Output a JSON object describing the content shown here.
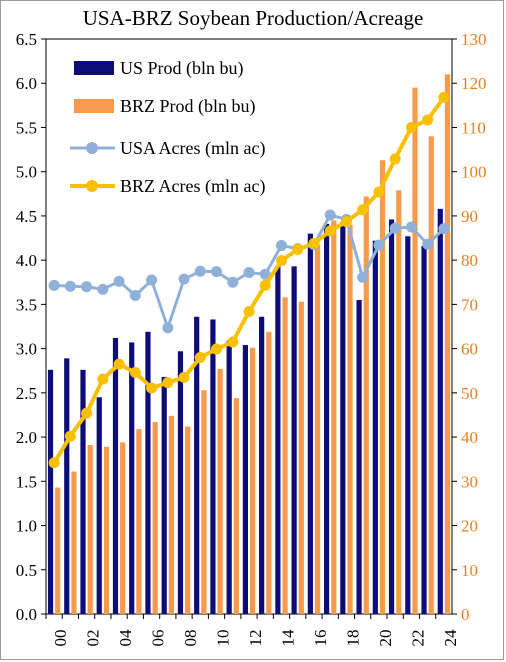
{
  "chart_data": {
    "type": "bar+line",
    "title": "USA-BRZ Soybean Production/Acreage",
    "x": [
      "00",
      "01",
      "02",
      "03",
      "04",
      "05",
      "06",
      "07",
      "08",
      "09",
      "10",
      "11",
      "12",
      "13",
      "14",
      "15",
      "16",
      "17",
      "18",
      "19",
      "20",
      "21",
      "22",
      "23",
      "24"
    ],
    "x_tick_labels": [
      "00",
      "02",
      "04",
      "06",
      "08",
      "10",
      "12",
      "14",
      "16",
      "18",
      "20",
      "22",
      "24"
    ],
    "y_left": {
      "min": 0,
      "max": 6.5,
      "ticks": [
        "0.0",
        "0.5",
        "1.0",
        "1.5",
        "2.0",
        "2.5",
        "3.0",
        "3.5",
        "4.0",
        "4.5",
        "5.0",
        "5.5",
        "6.0",
        "6.5"
      ]
    },
    "y_right": {
      "min": 0,
      "max": 130,
      "ticks": [
        "0",
        "10",
        "20",
        "30",
        "40",
        "50",
        "60",
        "70",
        "80",
        "90",
        "100",
        "110",
        "120",
        "130"
      ],
      "color": "#f07f1f"
    },
    "series": [
      {
        "name": "US Prod (bln bu)",
        "type": "bar",
        "axis": "left",
        "color": "#0d0d7a",
        "values": [
          2.76,
          2.89,
          2.76,
          2.45,
          3.12,
          3.07,
          3.19,
          2.68,
          2.97,
          3.36,
          3.33,
          3.09,
          3.04,
          3.36,
          3.93,
          3.93,
          4.3,
          4.41,
          4.43,
          3.55,
          4.22,
          4.46,
          4.27,
          4.16,
          4.58
        ]
      },
      {
        "name": "BRZ Prod (bln bu)",
        "type": "bar",
        "axis": "left",
        "color": "#f79a4e",
        "values": [
          1.43,
          1.61,
          1.91,
          1.89,
          1.94,
          2.09,
          2.17,
          2.24,
          2.12,
          2.53,
          2.77,
          2.44,
          3.01,
          3.19,
          3.58,
          3.53,
          4.17,
          4.45,
          4.4,
          4.72,
          5.13,
          4.79,
          5.95,
          5.4,
          6.1
        ]
      },
      {
        "name": "USA Acres (mln ac)",
        "type": "line",
        "axis": "right",
        "color": "#8fb0d8",
        "values": [
          74.3,
          74.1,
          74.0,
          73.4,
          75.2,
          72.0,
          75.5,
          64.7,
          75.7,
          77.5,
          77.4,
          75.0,
          77.2,
          76.8,
          83.3,
          82.6,
          83.5,
          90.2,
          89.2,
          76.1,
          83.4,
          87.2,
          87.5,
          83.6,
          87.1
        ]
      },
      {
        "name": "BRZ Acres (mln ac)",
        "type": "line",
        "axis": "right",
        "color": "#f9c000",
        "values": [
          34.2,
          40.2,
          45.4,
          53.1,
          56.5,
          54.6,
          51.1,
          52.3,
          53.5,
          58.0,
          59.9,
          61.5,
          68.4,
          74.3,
          79.9,
          82.4,
          83.8,
          86.6,
          88.7,
          91.4,
          95.4,
          102.9,
          110.0,
          111.7,
          116.8
        ]
      }
    ],
    "legend_position": "top-left",
    "grid": false
  }
}
